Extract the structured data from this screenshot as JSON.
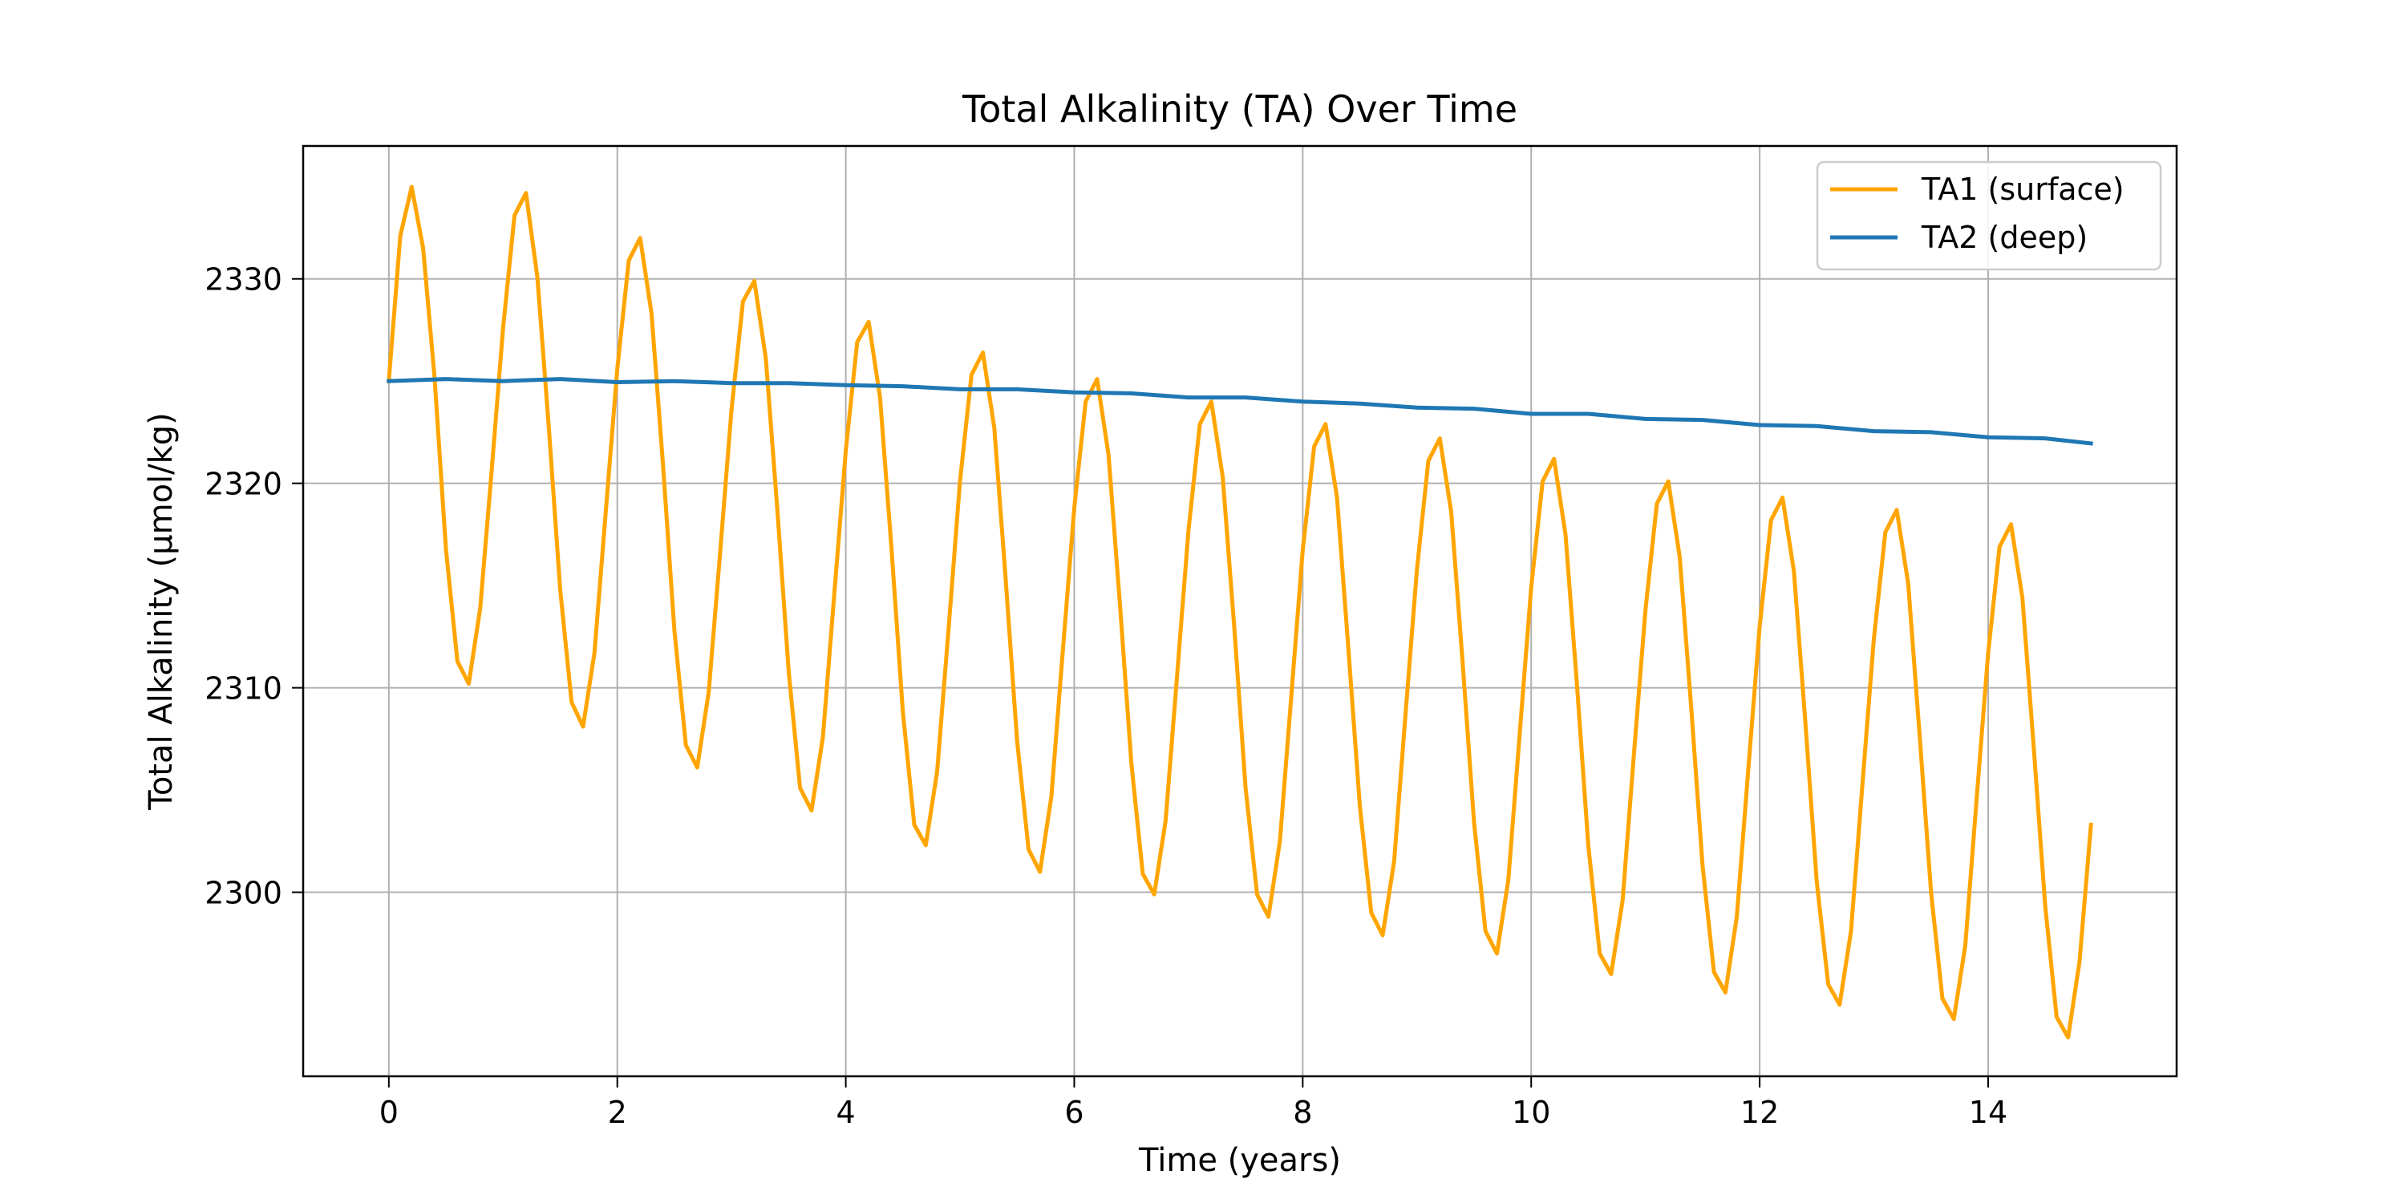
{
  "chart_data": {
    "type": "line",
    "title": "Total Alkalinity (TA) Over Time",
    "xlabel": "Time (years)",
    "ylabel": "Total Alkalinity (µmol/kg)",
    "xlim": [
      -0.75,
      15.65
    ],
    "ylim": [
      2291,
      2336.5
    ],
    "xticks": [
      0,
      2,
      4,
      6,
      8,
      10,
      12,
      14
    ],
    "yticks": [
      2300,
      2310,
      2320,
      2330
    ],
    "grid": true,
    "legend": {
      "location": "upper right"
    },
    "series": [
      {
        "name": "TA1 (surface)",
        "color": "#FFA500",
        "x": [
          0,
          0.1,
          0.2,
          0.3,
          0.4,
          0.5,
          0.6,
          0.7,
          0.8,
          0.9,
          1.0,
          1.1,
          1.2,
          1.3,
          1.4,
          1.5,
          1.6,
          1.7,
          1.8,
          1.9,
          2.0,
          2.1,
          2.2,
          2.3,
          2.4,
          2.5,
          2.6,
          2.7,
          2.8,
          2.9,
          3.0,
          3.1,
          3.2,
          3.3,
          3.4,
          3.5,
          3.6,
          3.7,
          3.8,
          3.9,
          4.0,
          4.1,
          4.2,
          4.3,
          4.4,
          4.5,
          4.6,
          4.7,
          4.8,
          4.9,
          5.0,
          5.1,
          5.2,
          5.3,
          5.4,
          5.5,
          5.6,
          5.7,
          5.8,
          5.9,
          6.0,
          6.1,
          6.2,
          6.3,
          6.4,
          6.5,
          6.6,
          6.7,
          6.8,
          6.9,
          7.0,
          7.1,
          7.2,
          7.3,
          7.4,
          7.5,
          7.6,
          7.7,
          7.8,
          7.9,
          8.0,
          8.1,
          8.2,
          8.3,
          8.4,
          8.5,
          8.6,
          8.7,
          8.8,
          8.9,
          9.0,
          9.1,
          9.2,
          9.3,
          9.4,
          9.5,
          9.6,
          9.7,
          9.8,
          9.9,
          10.0,
          10.1,
          10.2,
          10.3,
          10.4,
          10.5,
          10.6,
          10.7,
          10.8,
          10.9,
          11.0,
          11.1,
          11.2,
          11.3,
          11.4,
          11.5,
          11.6,
          11.7,
          11.8,
          11.9,
          12.0,
          12.1,
          12.2,
          12.3,
          12.4,
          12.5,
          12.6,
          12.7,
          12.8,
          12.9,
          13.0,
          13.1,
          13.2,
          13.3,
          13.4,
          13.5,
          13.6,
          13.7,
          13.8,
          13.9,
          14.0,
          14.1,
          14.2,
          14.3,
          14.4,
          14.5,
          14.6,
          14.7,
          14.8,
          14.9
        ],
        "y": [
          2325.0,
          2332.1,
          2334.5,
          2331.5,
          2325.2,
          2316.8,
          2311.3,
          2310.2,
          2313.9,
          2320.6,
          2327.6,
          2333.1,
          2334.2,
          2330.1,
          2322.8,
          2314.8,
          2309.3,
          2308.1,
          2311.7,
          2318.7,
          2325.6,
          2330.9,
          2332.0,
          2328.3,
          2320.9,
          2312.8,
          2307.2,
          2306.1,
          2309.8,
          2316.6,
          2323.6,
          2328.9,
          2329.9,
          2326.1,
          2318.8,
          2310.8,
          2305.1,
          2304.0,
          2307.6,
          2314.6,
          2321.6,
          2326.9,
          2327.9,
          2324.2,
          2316.8,
          2308.8,
          2303.3,
          2302.3,
          2305.9,
          2312.9,
          2320.1,
          2325.3,
          2326.4,
          2322.7,
          2315.3,
          2307.4,
          2302.1,
          2301.0,
          2304.7,
          2311.8,
          2318.8,
          2324.0,
          2325.1,
          2321.4,
          2314.1,
          2306.3,
          2300.9,
          2299.9,
          2303.5,
          2310.6,
          2317.7,
          2322.9,
          2324.0,
          2320.3,
          2313.0,
          2305.1,
          2299.9,
          2298.8,
          2302.5,
          2309.6,
          2316.7,
          2321.8,
          2322.9,
          2319.3,
          2311.9,
          2304.2,
          2299.0,
          2297.9,
          2301.5,
          2308.7,
          2315.8,
          2321.1,
          2322.2,
          2318.6,
          2311.2,
          2303.4,
          2298.1,
          2297.0,
          2300.6,
          2307.8,
          2314.9,
          2320.1,
          2321.2,
          2317.5,
          2310.2,
          2302.3,
          2297.0,
          2296.0,
          2299.6,
          2306.8,
          2313.8,
          2319.0,
          2320.1,
          2316.4,
          2309.1,
          2301.3,
          2296.1,
          2295.1,
          2298.8,
          2306.0,
          2313.0,
          2318.2,
          2319.3,
          2315.7,
          2308.3,
          2300.5,
          2295.5,
          2294.5,
          2298.1,
          2305.3,
          2312.4,
          2317.6,
          2318.7,
          2315.1,
          2307.7,
          2300.0,
          2294.8,
          2293.8,
          2297.4,
          2304.6,
          2311.7,
          2316.9,
          2318.0,
          2314.4,
          2307.0,
          2299.3,
          2293.9,
          2292.9,
          2296.6,
          2303.3
        ]
      },
      {
        "name": "TA2 (deep)",
        "color": "#1F77B4",
        "x": [
          0,
          0.5,
          1.0,
          1.5,
          2.0,
          2.5,
          3.0,
          3.5,
          4.0,
          4.5,
          5.0,
          5.5,
          6.0,
          6.5,
          7.0,
          7.5,
          8.0,
          8.5,
          9.0,
          9.5,
          10.0,
          10.5,
          11.0,
          11.5,
          12.0,
          12.5,
          13.0,
          13.5,
          14.0,
          14.5,
          14.9
        ],
        "y": [
          2325.0,
          2325.1,
          2325.0,
          2325.1,
          2324.95,
          2325.0,
          2324.9,
          2324.9,
          2324.8,
          2324.75,
          2324.6,
          2324.6,
          2324.45,
          2324.4,
          2324.2,
          2324.2,
          2324.0,
          2323.9,
          2323.7,
          2323.65,
          2323.4,
          2323.4,
          2323.15,
          2323.1,
          2322.85,
          2322.8,
          2322.55,
          2322.5,
          2322.25,
          2322.2,
          2321.95
        ]
      }
    ]
  }
}
